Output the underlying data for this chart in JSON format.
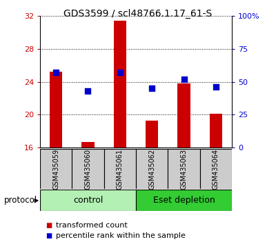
{
  "title": "GDS3599 / scl48766.1.17_61-S",
  "samples": [
    "GSM435059",
    "GSM435060",
    "GSM435061",
    "GSM435062",
    "GSM435063",
    "GSM435064"
  ],
  "red_values": [
    25.2,
    16.7,
    31.4,
    19.3,
    23.8,
    20.1
  ],
  "blue_values_pct": [
    57,
    43,
    57,
    45,
    52,
    46
  ],
  "ylim_left": [
    16,
    32
  ],
  "ylim_right": [
    0,
    100
  ],
  "yticks_left": [
    16,
    20,
    24,
    28,
    32
  ],
  "yticks_right": [
    0,
    25,
    50,
    75,
    100
  ],
  "ytick_labels_right": [
    "0",
    "25",
    "50",
    "75",
    "100%"
  ],
  "groups": [
    {
      "label": "control",
      "samples_idx": [
        0,
        1,
        2
      ],
      "color": "#b3f0b3"
    },
    {
      "label": "Eset depletion",
      "samples_idx": [
        3,
        4,
        5
      ],
      "color": "#33cc33"
    }
  ],
  "bar_color": "#cc0000",
  "dot_color": "#0000cc",
  "bar_bottom": 16,
  "bg_color": "#ffffff",
  "sample_area_color": "#cccccc",
  "legend_red_label": "transformed count",
  "legend_blue_label": "percentile rank within the sample",
  "protocol_label": "protocol",
  "title_fontsize": 10,
  "tick_fontsize": 8,
  "sample_fontsize": 7,
  "group_fontsize": 9,
  "legend_fontsize": 8
}
